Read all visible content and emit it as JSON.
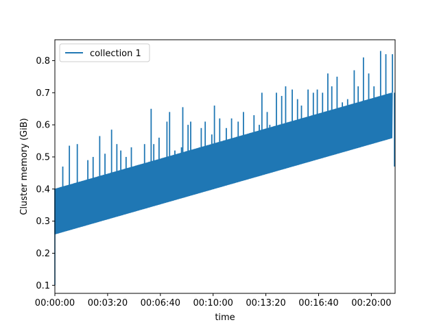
{
  "chart_data": {
    "type": "line",
    "xlabel": "time",
    "ylabel": "Cluster memory (GiB)",
    "xlim": [
      "00:00:00",
      "00:21:30"
    ],
    "ylim": [
      0.075,
      0.865
    ],
    "grid": false,
    "legend_position": "top-left",
    "x_ticks": [
      "00:00:00",
      "00:03:20",
      "00:06:40",
      "00:10:00",
      "00:13:20",
      "00:16:40",
      "00:20:00"
    ],
    "y_ticks": [
      "0.1",
      "0.2",
      "0.3",
      "0.4",
      "0.5",
      "0.6",
      "0.7",
      "0.8"
    ],
    "series": [
      {
        "name": "collection 1",
        "color": "#1f77b4",
        "upper_envelope": {
          "x": [
            "00:00:00",
            "00:21:20"
          ],
          "y": [
            0.4,
            0.7
          ]
        },
        "lower_envelope": {
          "x": [
            "00:00:00",
            "00:21:20"
          ],
          "y": [
            0.26,
            0.56
          ]
        },
        "spike_peaks": {
          "x": [
            "00:00:30",
            "00:00:55",
            "00:01:25",
            "00:02:05",
            "00:02:25",
            "00:02:50",
            "00:03:10",
            "00:03:35",
            "00:03:55",
            "00:04:10",
            "00:04:30",
            "00:04:50",
            "00:05:15",
            "00:05:40",
            "00:06:05",
            "00:06:15",
            "00:06:35",
            "00:07:05",
            "00:07:15",
            "00:07:35",
            "00:08:00",
            "00:08:05",
            "00:08:25",
            "00:08:35",
            "00:09:15",
            "00:09:30",
            "00:09:55",
            "00:10:05",
            "00:10:25",
            "00:10:50",
            "00:11:10",
            "00:11:35",
            "00:11:55",
            "00:12:35",
            "00:12:55",
            "00:13:05",
            "00:13:25",
            "00:13:35",
            "00:14:00",
            "00:14:20",
            "00:14:35",
            "00:15:00",
            "00:15:20",
            "00:15:35",
            "00:16:00",
            "00:16:20",
            "00:16:35",
            "00:16:55",
            "00:17:15",
            "00:17:30",
            "00:17:50",
            "00:18:10",
            "00:18:30",
            "00:18:55",
            "00:19:10",
            "00:19:30",
            "00:19:50",
            "00:20:10",
            "00:20:35",
            "00:20:55",
            "00:21:20"
          ],
          "y": [
            0.47,
            0.535,
            0.54,
            0.49,
            0.5,
            0.565,
            0.51,
            0.585,
            0.54,
            0.52,
            0.5,
            0.53,
            0.47,
            0.54,
            0.65,
            0.54,
            0.56,
            0.61,
            0.64,
            0.52,
            0.53,
            0.655,
            0.6,
            0.61,
            0.59,
            0.61,
            0.57,
            0.66,
            0.62,
            0.59,
            0.62,
            0.61,
            0.64,
            0.63,
            0.6,
            0.7,
            0.64,
            0.6,
            0.7,
            0.69,
            0.72,
            0.71,
            0.68,
            0.66,
            0.71,
            0.7,
            0.71,
            0.7,
            0.76,
            0.72,
            0.75,
            0.67,
            0.68,
            0.77,
            0.72,
            0.81,
            0.76,
            0.72,
            0.83,
            0.82,
            0.82
          ]
        },
        "end_value": 0.47
      }
    ]
  }
}
